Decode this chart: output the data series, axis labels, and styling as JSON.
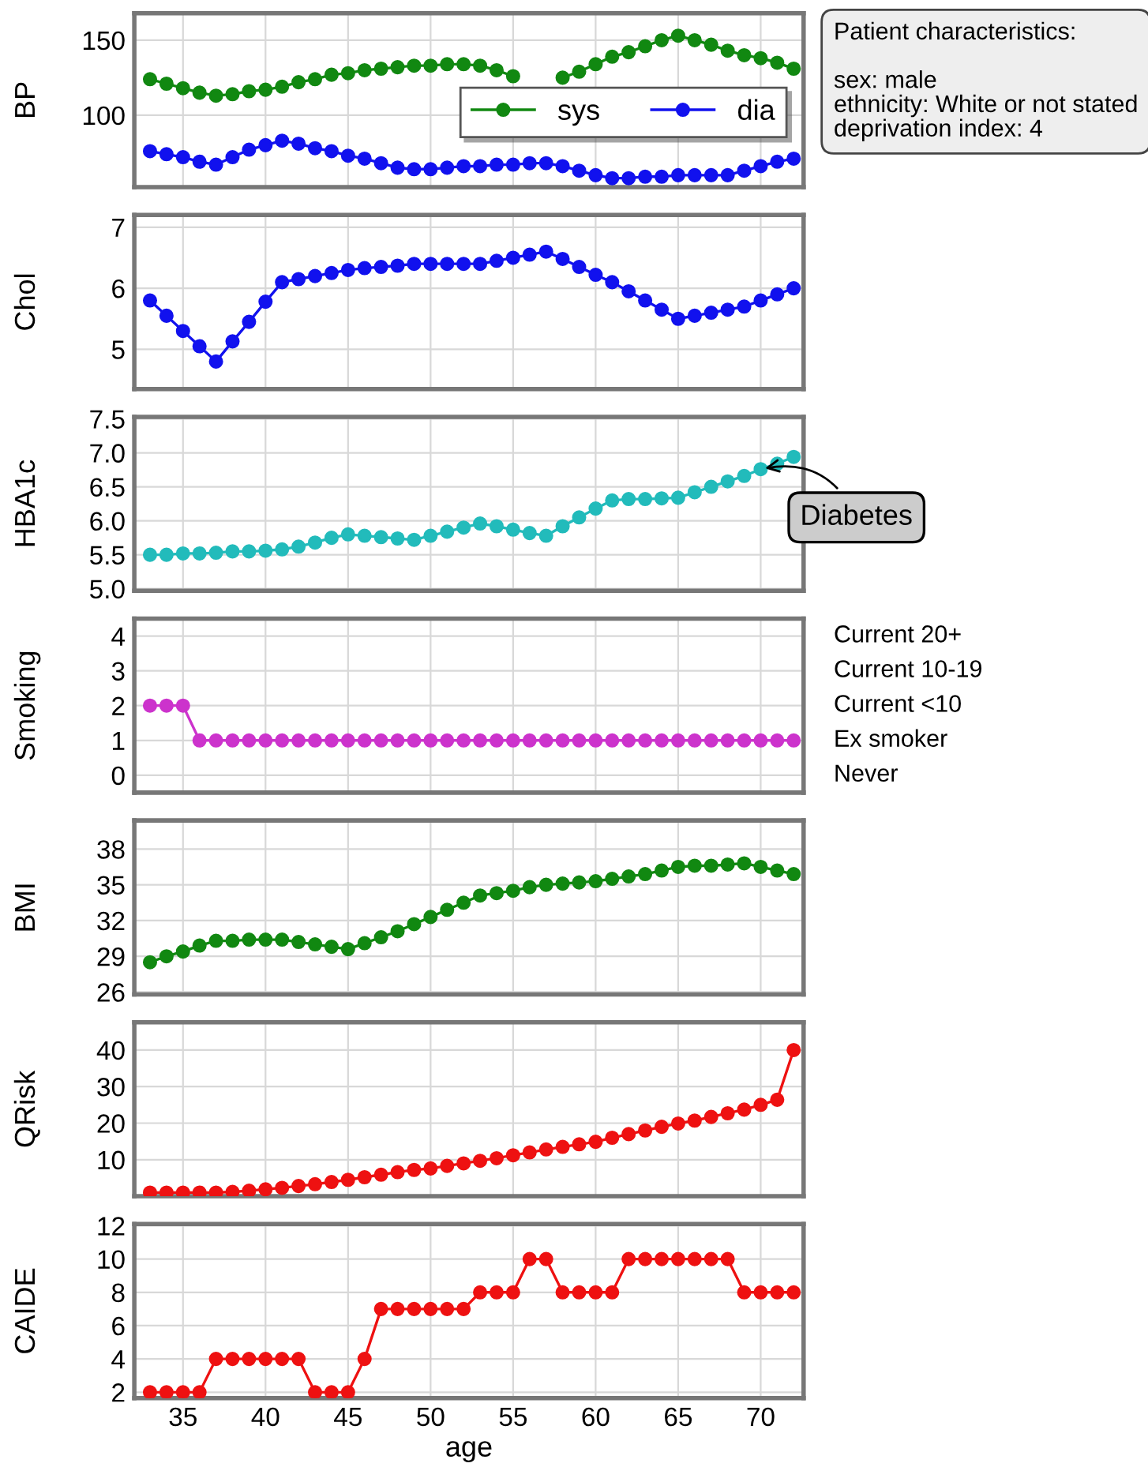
{
  "chart_data": [
    {
      "type": "line",
      "ylabel": "BP",
      "x": [
        33,
        34,
        35,
        36,
        37,
        38,
        39,
        40,
        41,
        42,
        43,
        44,
        45,
        46,
        47,
        48,
        49,
        50,
        51,
        52,
        53,
        54,
        55,
        56,
        57,
        58,
        59,
        60,
        61,
        62,
        63,
        64,
        65,
        66,
        67,
        68,
        69,
        70,
        71,
        72
      ],
      "series": [
        {
          "name": "sys",
          "color": "#118811",
          "values": [
            124,
            121,
            118,
            115,
            113,
            114,
            116,
            117,
            119,
            122,
            124,
            127,
            128,
            130,
            131,
            132,
            133,
            133,
            134,
            134,
            133,
            130,
            126,
            null,
            null,
            125,
            129,
            134,
            139,
            142,
            146,
            150,
            153,
            150,
            147,
            143,
            140,
            138,
            135,
            131
          ]
        },
        {
          "name": "dia",
          "color": "#1111ee",
          "values": [
            76,
            74,
            72,
            69,
            67,
            72,
            77,
            80,
            83,
            81,
            78,
            76,
            73,
            71,
            68,
            65,
            64,
            64,
            65,
            66,
            66,
            67,
            67,
            68,
            68,
            66,
            63,
            60,
            58,
            58,
            59,
            59,
            60,
            60,
            60,
            60,
            63,
            66,
            69,
            71
          ]
        }
      ],
      "xlim": [
        32.05,
        72.6
      ],
      "xticks": [
        35,
        40,
        45,
        50,
        55,
        60,
        65,
        70
      ],
      "ylim": [
        52,
        168
      ],
      "yticks": [
        100,
        150
      ],
      "grid": true,
      "legend": "center right",
      "marker": "circle",
      "tick_labels": "y",
      "annotations": [
        "Patient characteristics:\n\nsex: male\nethnicity: White or not stated\ndeprivation index: 4"
      ]
    },
    {
      "type": "line",
      "ylabel": "Chol",
      "x": [
        33,
        34,
        35,
        36,
        37,
        38,
        39,
        40,
        41,
        42,
        43,
        44,
        45,
        46,
        47,
        48,
        49,
        50,
        51,
        52,
        53,
        54,
        55,
        56,
        57,
        58,
        59,
        60,
        61,
        62,
        63,
        64,
        65,
        66,
        67,
        68,
        69,
        70,
        71,
        72
      ],
      "series": [
        {
          "color": "#1111ee",
          "values": [
            5.8,
            5.55,
            5.3,
            5.05,
            4.8,
            5.13,
            5.45,
            5.78,
            6.1,
            6.15,
            6.2,
            6.25,
            6.3,
            6.33,
            6.35,
            6.37,
            6.4,
            6.4,
            6.4,
            6.4,
            6.4,
            6.45,
            6.5,
            6.55,
            6.6,
            6.48,
            6.35,
            6.22,
            6.1,
            5.95,
            5.8,
            5.65,
            5.5,
            5.55,
            5.6,
            5.65,
            5.7,
            5.8,
            5.9,
            6.0
          ]
        }
      ],
      "xlim": [
        32.05,
        72.6
      ],
      "xticks": [
        35,
        40,
        45,
        50,
        55,
        60,
        65,
        70
      ],
      "ylim": [
        4.35,
        7.2
      ],
      "yticks": [
        5,
        6,
        7
      ],
      "grid": true,
      "marker": "circle",
      "tick_labels": "y"
    },
    {
      "type": "line",
      "ylabel": "HBA1c",
      "x": [
        33,
        34,
        35,
        36,
        37,
        38,
        39,
        40,
        41,
        42,
        43,
        44,
        45,
        46,
        47,
        48,
        49,
        50,
        51,
        52,
        53,
        54,
        55,
        56,
        57,
        58,
        59,
        60,
        61,
        62,
        63,
        64,
        65,
        66,
        67,
        68,
        69,
        70,
        71,
        72
      ],
      "series": [
        {
          "color": "#22bbbb",
          "values": [
            5.5,
            5.5,
            5.52,
            5.52,
            5.53,
            5.55,
            5.55,
            5.56,
            5.58,
            5.62,
            5.68,
            5.75,
            5.8,
            5.78,
            5.76,
            5.74,
            5.72,
            5.78,
            5.84,
            5.9,
            5.96,
            5.92,
            5.87,
            5.82,
            5.78,
            5.92,
            6.05,
            6.18,
            6.3,
            6.32,
            6.32,
            6.33,
            6.34,
            6.42,
            6.5,
            6.58,
            6.66,
            6.76,
            6.84,
            6.94
          ]
        }
      ],
      "xlim": [
        32.05,
        72.6
      ],
      "xticks": [
        35,
        40,
        45,
        50,
        55,
        60,
        65,
        70
      ],
      "ylim": [
        4.97,
        7.53
      ],
      "yticks": [
        {
          "value": 5.0,
          "label": "5.0"
        },
        {
          "value": 5.5,
          "label": "5.5"
        },
        {
          "value": 6.0,
          "label": "6.0"
        },
        {
          "value": 6.5,
          "label": "6.5"
        },
        {
          "value": 7.0,
          "label": "7.0"
        },
        {
          "value": 7.5,
          "label": "7.5"
        }
      ],
      "grid": true,
      "marker": "circle",
      "tick_labels": "y",
      "annotations": [
        {
          "text": "Diabetes",
          "x": 70,
          "y": 6.76
        }
      ]
    },
    {
      "type": "line",
      "ylabel": "Smoking",
      "x": [
        33,
        34,
        35,
        36,
        37,
        38,
        39,
        40,
        41,
        42,
        43,
        44,
        45,
        46,
        47,
        48,
        49,
        50,
        51,
        52,
        53,
        54,
        55,
        56,
        57,
        58,
        59,
        60,
        61,
        62,
        63,
        64,
        65,
        66,
        67,
        68,
        69,
        70,
        71,
        72
      ],
      "series": [
        {
          "color": "#cc33cc",
          "values": [
            2,
            2,
            2,
            1,
            1,
            1,
            1,
            1,
            1,
            1,
            1,
            1,
            1,
            1,
            1,
            1,
            1,
            1,
            1,
            1,
            1,
            1,
            1,
            1,
            1,
            1,
            1,
            1,
            1,
            1,
            1,
            1,
            1,
            1,
            1,
            1,
            1,
            1,
            1,
            1
          ]
        }
      ],
      "xlim": [
        32.05,
        72.6
      ],
      "xticks": [
        35,
        40,
        45,
        50,
        55,
        60,
        65,
        70
      ],
      "ylim": [
        -0.5,
        4.5
      ],
      "yticks": [
        0,
        1,
        2,
        3,
        4
      ],
      "annotations": [
        "Current 20+",
        "Current 10-19",
        "Current <10",
        "Ex smoker",
        "Never"
      ],
      "grid": true,
      "marker": "circle",
      "tick_labels": "y"
    },
    {
      "type": "line",
      "ylabel": "BMI",
      "x": [
        33,
        34,
        35,
        36,
        37,
        38,
        39,
        40,
        41,
        42,
        43,
        44,
        45,
        46,
        47,
        48,
        49,
        50,
        51,
        52,
        53,
        54,
        55,
        56,
        57,
        58,
        59,
        60,
        61,
        62,
        63,
        64,
        65,
        66,
        67,
        68,
        69,
        70,
        71,
        72
      ],
      "series": [
        {
          "color": "#118811",
          "values": [
            28.5,
            29,
            29.4,
            29.9,
            30.3,
            30.3,
            30.4,
            30.4,
            30.4,
            30.2,
            30,
            29.8,
            29.6,
            30.1,
            30.6,
            31.1,
            31.7,
            32.3,
            32.9,
            33.5,
            34.1,
            34.3,
            34.5,
            34.8,
            35,
            35.1,
            35.2,
            35.3,
            35.5,
            35.7,
            35.9,
            36.2,
            36.5,
            36.6,
            36.6,
            36.7,
            36.8,
            36.5,
            36.2,
            35.9
          ]
        }
      ],
      "xlim": [
        32.05,
        72.6
      ],
      "xticks": [
        35,
        40,
        45,
        50,
        55,
        60,
        65,
        70
      ],
      "ylim": [
        25.8,
        40.4
      ],
      "yticks": [
        26,
        29,
        32,
        35,
        38
      ],
      "grid": true,
      "marker": "circle",
      "tick_labels": "y"
    },
    {
      "type": "line",
      "ylabel": "QRisk",
      "x": [
        33,
        34,
        35,
        36,
        37,
        38,
        39,
        40,
        41,
        42,
        43,
        44,
        45,
        46,
        47,
        48,
        49,
        50,
        51,
        52,
        53,
        54,
        55,
        56,
        57,
        58,
        59,
        60,
        61,
        62,
        63,
        64,
        65,
        66,
        67,
        68,
        69,
        70,
        71,
        72
      ],
      "series": [
        {
          "color": "#ee1111",
          "values": [
            1,
            1,
            1,
            1,
            1,
            1.2,
            1.5,
            1.9,
            2.3,
            2.8,
            3.3,
            3.9,
            4.5,
            5.2,
            5.9,
            6.6,
            7.2,
            7.6,
            8.3,
            9,
            9.7,
            10.4,
            11.2,
            12,
            12.8,
            13.5,
            14.2,
            14.9,
            16,
            17,
            18,
            19,
            19.9,
            20.7,
            21.7,
            22.7,
            23.7,
            25,
            26.4,
            40
          ]
        }
      ],
      "xlim": [
        32.05,
        72.6
      ],
      "xticks": [
        35,
        40,
        45,
        50,
        55,
        60,
        65,
        70
      ],
      "ylim": [
        0,
        47.6
      ],
      "yticks": [
        10,
        20,
        30,
        40
      ],
      "grid": true,
      "marker": "circle",
      "tick_labels": "y"
    },
    {
      "type": "line",
      "ylabel": "CAIDE",
      "xlabel": "age",
      "x": [
        33,
        34,
        35,
        36,
        37,
        38,
        39,
        40,
        41,
        42,
        43,
        44,
        45,
        46,
        47,
        48,
        49,
        50,
        51,
        52,
        53,
        54,
        55,
        56,
        57,
        58,
        59,
        60,
        61,
        62,
        63,
        64,
        65,
        66,
        67,
        68,
        69,
        70,
        71,
        72
      ],
      "series": [
        {
          "color": "#ee1111",
          "values": [
            2,
            2,
            2,
            2,
            4,
            4,
            4,
            4,
            4,
            4,
            2,
            2,
            2,
            4,
            7,
            7,
            7,
            7,
            7,
            7,
            8,
            8,
            8,
            10,
            10,
            8,
            8,
            8,
            8,
            10,
            10,
            10,
            10,
            10,
            10,
            10,
            8,
            8,
            8,
            8
          ]
        }
      ],
      "xlim": [
        32.05,
        72.6
      ],
      "xticks": [
        35,
        40,
        45,
        50,
        55,
        60,
        65,
        70
      ],
      "ylim": [
        1.65,
        12.1
      ],
      "yticks": [
        2,
        4,
        6,
        8,
        10,
        12
      ],
      "grid": true,
      "marker": "circle"
    }
  ]
}
